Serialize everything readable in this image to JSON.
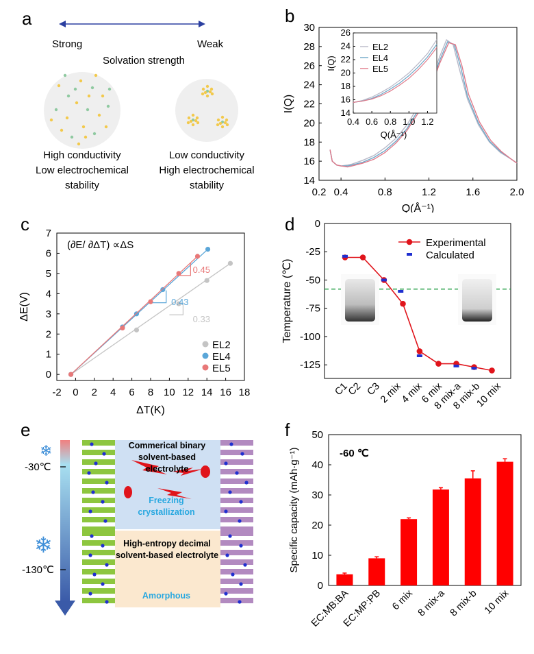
{
  "panel_labels": {
    "a": "a",
    "b": "b",
    "c": "c",
    "d": "d",
    "e": "e",
    "f": "f"
  },
  "panel_a": {
    "left_label": "Strong",
    "right_label": "Weak",
    "axis_title": "Solvation strength",
    "left_desc": [
      "High conductivity",
      "Low electrochemical",
      "stability"
    ],
    "right_desc": [
      "Low conductivity",
      "High electrochemical",
      "stability"
    ],
    "colors": {
      "arrow": "#2b3fa0",
      "dot_yellow": "#f2c94c",
      "dot_green": "#8fc9a0",
      "circle": "#eeeeee"
    }
  },
  "panel_e": {
    "top_title": "Commerical binary solvent-based electrolyte",
    "top_state": "Freezing crystallization",
    "bottom_title": "High-entropy decimal solvent-based electrolyte",
    "bottom_state": "Amorphous",
    "temp_top": "-30℃",
    "temp_bottom": "-130℃",
    "icons": [
      "snowflake-icon",
      "snowflake-icon"
    ],
    "colors": {
      "top_bg": "#cfe0f3",
      "bottom_bg": "#fbe8cf",
      "state_text": "#29a8e0",
      "green_stripe": "#8dc63f",
      "purple_stripe": "#b28ac0",
      "dot": "#1f2fd0",
      "crystal": "#e0141b"
    }
  },
  "chart_data": [
    {
      "panel": "b",
      "type": "line",
      "xlabel": "Q(Å⁻¹)",
      "ylabel": "I(Q)",
      "xlim": [
        0.2,
        2.0
      ],
      "ylim": [
        14,
        30
      ],
      "x_ticks": [
        "0.2",
        "0.4",
        "0.8",
        "1.2",
        "1.6",
        "2.0"
      ],
      "y_ticks": [
        "14",
        "16",
        "18",
        "20",
        "22",
        "24",
        "26",
        "28",
        "30"
      ],
      "series": [
        {
          "name": "EL2",
          "color": "#b8b8c8",
          "x": [
            0.3,
            0.32,
            0.36,
            0.4,
            0.46,
            0.5,
            0.6,
            0.7,
            0.8,
            0.9,
            1.0,
            1.1,
            1.2,
            1.3,
            1.36,
            1.42,
            1.48,
            1.55,
            1.65,
            1.75,
            1.85,
            1.95,
            2.0
          ],
          "y": [
            17.2,
            16.0,
            15.6,
            15.5,
            15.6,
            15.7,
            16.1,
            16.6,
            17.4,
            18.4,
            19.8,
            21.7,
            24.0,
            27.0,
            28.7,
            28.2,
            25.5,
            22.5,
            19.8,
            18.0,
            16.9,
            16.2,
            15.8
          ]
        },
        {
          "name": "EL4",
          "color": "#6fa8c8",
          "x": [
            0.3,
            0.32,
            0.36,
            0.4,
            0.46,
            0.5,
            0.6,
            0.7,
            0.8,
            0.9,
            1.0,
            1.1,
            1.2,
            1.3,
            1.37,
            1.43,
            1.49,
            1.55,
            1.65,
            1.75,
            1.85,
            1.95,
            2.0
          ],
          "y": [
            17.2,
            16.0,
            15.6,
            15.5,
            15.5,
            15.6,
            15.9,
            16.4,
            17.1,
            18.1,
            19.4,
            21.3,
            23.6,
            26.6,
            28.5,
            28.2,
            25.8,
            22.8,
            20.0,
            18.1,
            17.0,
            16.2,
            15.8
          ]
        },
        {
          "name": "EL5",
          "color": "#e07a8a",
          "x": [
            0.3,
            0.32,
            0.36,
            0.4,
            0.46,
            0.5,
            0.6,
            0.7,
            0.8,
            0.9,
            1.0,
            1.1,
            1.2,
            1.3,
            1.38,
            1.44,
            1.5,
            1.56,
            1.66,
            1.76,
            1.86,
            1.95,
            2.0
          ],
          "y": [
            17.2,
            16.0,
            15.6,
            15.5,
            15.4,
            15.5,
            15.8,
            16.2,
            16.9,
            17.9,
            19.2,
            21.0,
            23.3,
            26.3,
            28.4,
            28.2,
            26.0,
            23.0,
            20.1,
            18.2,
            17.0,
            16.2,
            15.8
          ]
        }
      ],
      "legend_position": "top-left",
      "inset": {
        "xlabel": "Q(Å⁻¹)",
        "ylabel": "I(Q)",
        "xlim": [
          0.4,
          1.3
        ],
        "ylim": [
          14,
          26
        ],
        "x_ticks": [
          "0.4",
          "0.6",
          "0.8",
          "1.0",
          "1.2"
        ],
        "y_ticks": [
          "14",
          "16",
          "18",
          "20",
          "22",
          "24",
          "26"
        ],
        "series": [
          {
            "name": "EL2",
            "x": [
              0.4,
              0.5,
              0.6,
              0.7,
              0.8,
              0.9,
              1.0,
              1.1,
              1.2,
              1.3
            ],
            "y": [
              15.6,
              15.9,
              16.4,
              17.1,
              17.9,
              18.9,
              20.0,
              21.4,
              22.9,
              25.0
            ]
          },
          {
            "name": "EL4",
            "x": [
              0.4,
              0.5,
              0.6,
              0.7,
              0.8,
              0.9,
              1.0,
              1.1,
              1.2,
              1.3
            ],
            "y": [
              15.6,
              15.8,
              16.2,
              16.8,
              17.6,
              18.5,
              19.6,
              20.9,
              22.4,
              24.3
            ]
          },
          {
            "name": "EL5",
            "x": [
              0.4,
              0.5,
              0.6,
              0.7,
              0.8,
              0.9,
              1.0,
              1.1,
              1.2,
              1.3
            ],
            "y": [
              15.6,
              15.8,
              16.1,
              16.6,
              17.3,
              18.2,
              19.2,
              20.5,
              22.0,
              23.8
            ]
          }
        ]
      }
    },
    {
      "panel": "c",
      "type": "scatter",
      "xlabel": "ΔT(K)",
      "ylabel": "ΔE(V)",
      "annotation": "(∂E/ ∂ΔT) ∝ΔS",
      "xlim": [
        -2,
        18
      ],
      "ylim": [
        -0.3,
        7
      ],
      "x_ticks": [
        "-2",
        "0",
        "2",
        "4",
        "6",
        "8",
        "10",
        "12",
        "14",
        "16",
        "18"
      ],
      "y_ticks": [
        "0",
        "1",
        "2",
        "3",
        "4",
        "5",
        "6",
        "7"
      ],
      "series": [
        {
          "name": "EL2",
          "color": "#c4c4c4",
          "slope_label": "0.33",
          "x": [
            -0.5,
            6.5,
            11,
            14,
            16.5
          ],
          "y": [
            0,
            2.2,
            3.5,
            4.65,
            5.5
          ]
        },
        {
          "name": "EL4",
          "color": "#5aa6d8",
          "slope_label": "0.43",
          "x": [
            -0.5,
            5,
            6.5,
            9.3,
            14.1
          ],
          "y": [
            0,
            2.35,
            3.0,
            4.2,
            6.2
          ]
        },
        {
          "name": "EL5",
          "color": "#e87878",
          "slope_label": "0.45",
          "x": [
            -0.5,
            5,
            8,
            11,
            13
          ],
          "y": [
            0,
            2.3,
            3.6,
            5.0,
            5.85
          ]
        }
      ],
      "legend_position": "bottom-right"
    },
    {
      "panel": "d",
      "type": "line",
      "ylabel": "Temperature (℃)",
      "categories": [
        "C1",
        "C2",
        "C3",
        "2 mix",
        "4 mix",
        "6 mix",
        "8 mix-a",
        "8 mix-b",
        "10 mix"
      ],
      "ylim": [
        -137,
        0
      ],
      "y_ticks": [
        "0",
        "-25",
        "-50",
        "-75",
        "-100",
        "-125"
      ],
      "reference_line": -58,
      "series": [
        {
          "name": "Experimental",
          "color": "#e0141b",
          "x": [
            0,
            0.8,
            1.75,
            2.6,
            3.35,
            4.2,
            5.0,
            5.8,
            6.6
          ],
          "y": [
            -30,
            -30,
            -50,
            -71,
            -113,
            -124,
            -124,
            -127,
            -130
          ]
        },
        {
          "name": "Calculated",
          "color": "#1f2fd0",
          "x": [
            0,
            1.75,
            2.5,
            3.35,
            5.0,
            5.8
          ],
          "y": [
            -29,
            -50,
            -60,
            -117,
            -126,
            -128
          ]
        }
      ],
      "legend_position": "top-right"
    },
    {
      "panel": "f",
      "type": "bar",
      "title": "-60 ℃",
      "ylabel": "Specific capacity (mAh·g⁻¹)",
      "categories": [
        "EC:MB:BA",
        "EC:MP:PB",
        "6 mix",
        "8 mix-a",
        "8 mix-b",
        "10 mix"
      ],
      "values": [
        3.7,
        9.0,
        22.0,
        31.8,
        35.5,
        41.0
      ],
      "errors": [
        0.4,
        0.5,
        0.4,
        0.6,
        2.5,
        1.0
      ],
      "ylim": [
        0,
        50
      ],
      "y_ticks": [
        "0",
        "10",
        "20",
        "30",
        "40",
        "50"
      ],
      "color": "#ff0000"
    }
  ]
}
